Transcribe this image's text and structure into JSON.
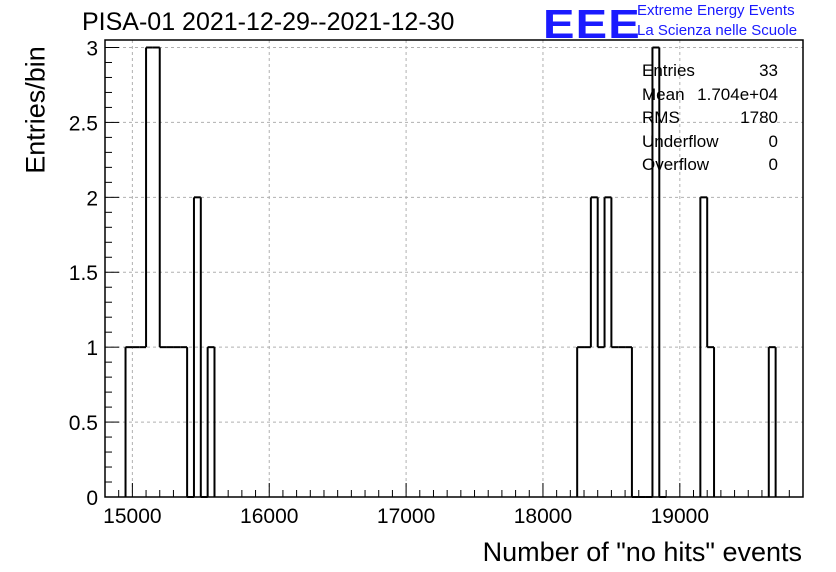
{
  "chart_data": {
    "type": "bar",
    "title": "PISA-01 2021-12-29--2021-12-30",
    "xlabel": "Number of \"no hits\" events",
    "ylabel": "Entries/bin",
    "xlim": [
      14800,
      19900
    ],
    "ylim": [
      0,
      3.05
    ],
    "grid": true,
    "bin_width": 50,
    "x_ticks": [
      15000,
      16000,
      17000,
      18000,
      19000
    ],
    "x_tick_labels": [
      "15000",
      "16000",
      "17000",
      "18000",
      "19000"
    ],
    "y_ticks": [
      0,
      0.5,
      1,
      1.5,
      2,
      2.5,
      3
    ],
    "y_tick_labels": [
      "0",
      "0.5",
      "1",
      "1.5",
      "2",
      "2.5",
      "3"
    ],
    "bins": [
      {
        "x": 14950,
        "value": 1
      },
      {
        "x": 15000,
        "value": 1
      },
      {
        "x": 15050,
        "value": 1
      },
      {
        "x": 15100,
        "value": 3
      },
      {
        "x": 15150,
        "value": 3
      },
      {
        "x": 15200,
        "value": 1
      },
      {
        "x": 15250,
        "value": 1
      },
      {
        "x": 15300,
        "value": 1
      },
      {
        "x": 15350,
        "value": 1
      },
      {
        "x": 15400,
        "value": 0
      },
      {
        "x": 15450,
        "value": 2
      },
      {
        "x": 15500,
        "value": 0
      },
      {
        "x": 15550,
        "value": 1
      },
      {
        "x": 18250,
        "value": 1
      },
      {
        "x": 18300,
        "value": 1
      },
      {
        "x": 18350,
        "value": 2
      },
      {
        "x": 18400,
        "value": 1
      },
      {
        "x": 18450,
        "value": 2
      },
      {
        "x": 18500,
        "value": 1
      },
      {
        "x": 18550,
        "value": 1
      },
      {
        "x": 18600,
        "value": 1
      },
      {
        "x": 18650,
        "value": 0
      },
      {
        "x": 18700,
        "value": 0
      },
      {
        "x": 18750,
        "value": 0
      },
      {
        "x": 18800,
        "value": 3
      },
      {
        "x": 18850,
        "value": 0
      },
      {
        "x": 19150,
        "value": 2
      },
      {
        "x": 19200,
        "value": 1
      },
      {
        "x": 19650,
        "value": 1
      }
    ]
  },
  "stats": {
    "rows": [
      {
        "label": "Entries",
        "value": "33"
      },
      {
        "label": "Mean",
        "value": "1.704e+04"
      },
      {
        "label": "RMS",
        "value": "1780"
      },
      {
        "label": "Underflow",
        "value": "0"
      },
      {
        "label": "Overflow",
        "value": "0"
      }
    ]
  },
  "logo": {
    "mark": "EEE",
    "line1": "Extreme Energy Events",
    "line2": "La Scienza nelle Scuole",
    "color": "#1a1aff"
  }
}
